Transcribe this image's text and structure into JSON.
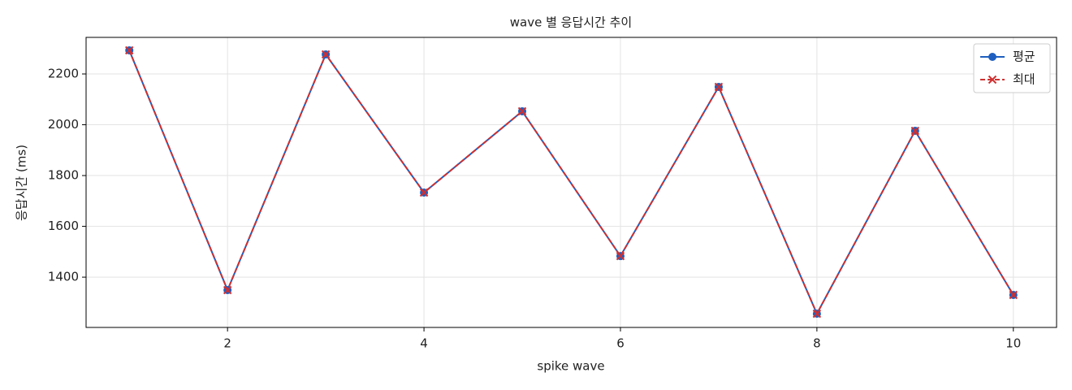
{
  "chart_data": {
    "type": "line",
    "title": "wave 별 응답시간 추이",
    "x_label": "spike wave",
    "y_label": "응답시간 (ms)",
    "x": [
      1,
      2,
      3,
      4,
      5,
      6,
      7,
      8,
      9,
      10
    ],
    "series": [
      {
        "name": "평균",
        "color": "#1f5fbf",
        "marker": "circle",
        "dash": false,
        "values": [
          2293,
          1349,
          2277,
          1733,
          2053,
          1483,
          2149,
          1256,
          1976,
          1330
        ]
      },
      {
        "name": "최대",
        "color": "#d03030",
        "marker": "x",
        "dash": true,
        "values": [
          2293,
          1349,
          2277,
          1733,
          2053,
          1483,
          2149,
          1256,
          1976,
          1330
        ]
      }
    ],
    "xlim": [
      0.56,
      10.44
    ],
    "ylim": [
      1202,
      2344
    ],
    "xticks": [
      2,
      4,
      6,
      8,
      10
    ],
    "yticks": [
      1400,
      1600,
      1800,
      2000,
      2200
    ],
    "grid": true,
    "legend": "upper right"
  }
}
